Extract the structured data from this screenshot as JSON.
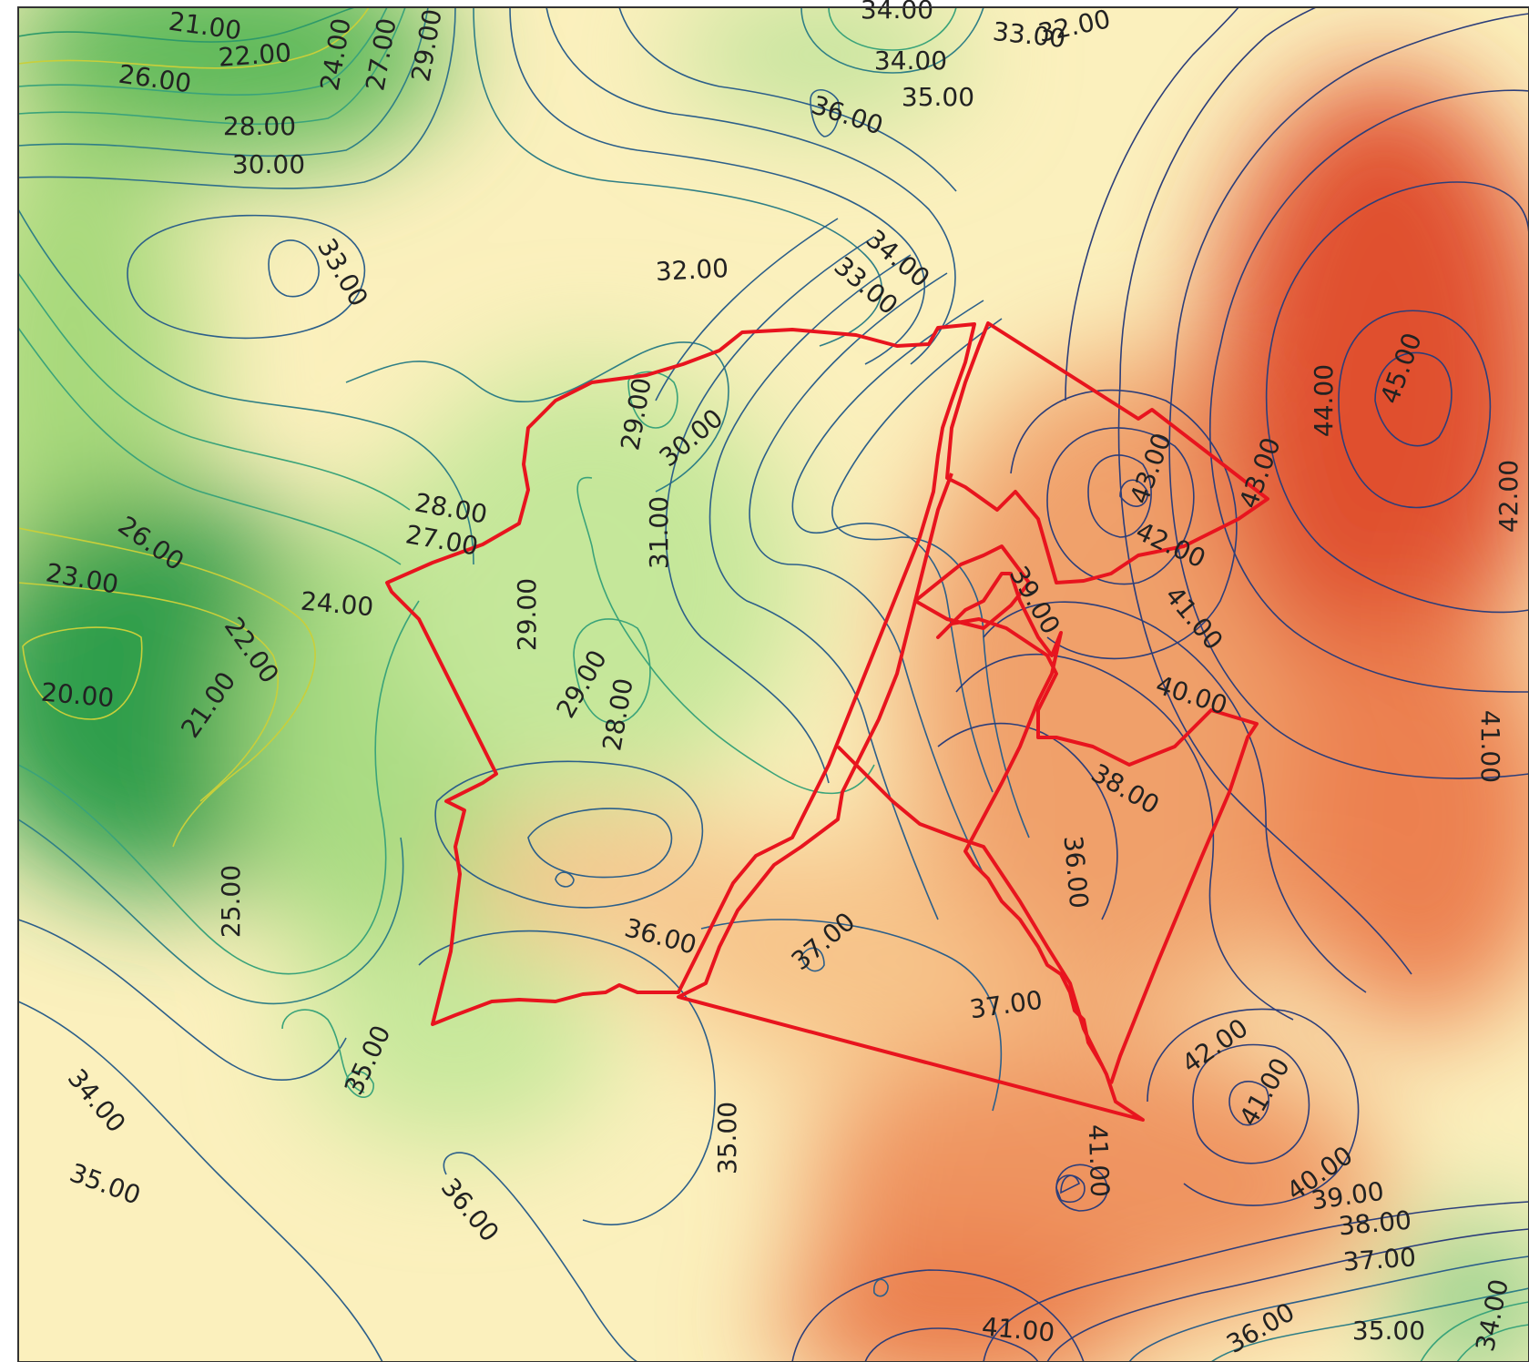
{
  "map": {
    "type": "contour-map",
    "colors": {
      "low": "#238b45",
      "mid_low": "#c7e89b",
      "mid": "#fbf5c0",
      "mid_high": "#f7c98c",
      "high": "#e34a33",
      "contour_green": "#3aa37a",
      "contour_yellow": "#d8d23c",
      "contour_blue": "#2c5f8a",
      "boundary": "#e8141e",
      "label": "#222222"
    },
    "contour_labels": [
      "21.00",
      "22.00",
      "26.00",
      "24.00",
      "27.00",
      "29.00",
      "28.00",
      "30.00",
      "34.00",
      "33.00",
      "32.00",
      "34.00",
      "35.00",
      "36.00",
      "33.00",
      "32.00",
      "34.00",
      "33.00",
      "45.00",
      "44.00",
      "43.00",
      "43.00",
      "42.00",
      "42.00",
      "41.00",
      "29.00",
      "30.00",
      "31.00",
      "28.00",
      "27.00",
      "26.00",
      "23.00",
      "24.00",
      "22.00",
      "21.00",
      "20.00",
      "29.00",
      "29.00",
      "28.00",
      "39.00",
      "40.00",
      "41.00",
      "38.00",
      "36.00",
      "25.00",
      "36.00",
      "37.00",
      "37.00",
      "35.00",
      "34.00",
      "35.00",
      "35.00",
      "36.00",
      "41.00",
      "42.00",
      "41.00",
      "40.00",
      "39.00",
      "38.00",
      "37.00",
      "36.00",
      "35.00",
      "34.00",
      "41.00"
    ]
  }
}
